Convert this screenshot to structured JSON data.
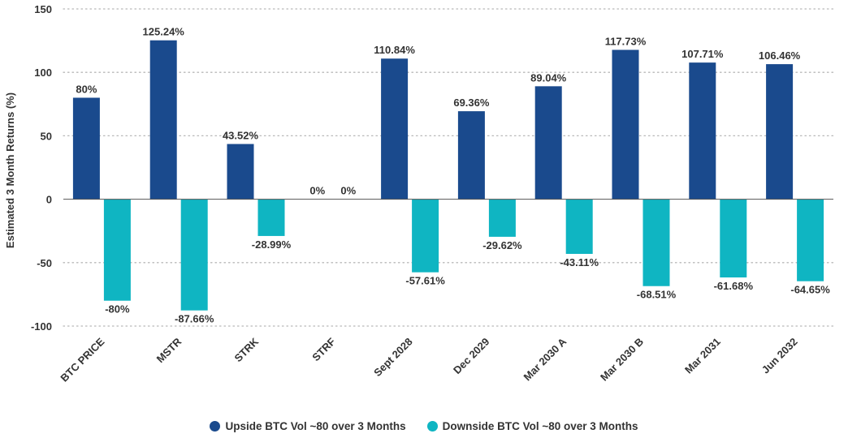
{
  "chart_data": {
    "type": "bar",
    "title": "",
    "xlabel": "",
    "ylabel": "Estimated 3 Month Returns (%)",
    "ylim": [
      -100,
      150
    ],
    "yticks": [
      150,
      100,
      50,
      0,
      -50,
      -100
    ],
    "grid": true,
    "legend_position": "bottom",
    "categories": [
      "BTC PRICE",
      "MSTR",
      "STRK",
      "STRF",
      "Sept 2028",
      "Dec 2029",
      "Mar 2030 A",
      "Mar 2030 B",
      "Mar 2031",
      "Jun 2032"
    ],
    "series": [
      {
        "name": "Upside BTC Vol ~80 over 3 Months",
        "color": "#1a4a8d",
        "values": [
          80,
          125.24,
          43.52,
          0,
          110.84,
          69.36,
          89.04,
          117.73,
          107.71,
          106.46
        ],
        "labels": [
          "80%",
          "125.24%",
          "43.52%",
          "0%",
          "110.84%",
          "69.36%",
          "89.04%",
          "117.73%",
          "107.71%",
          "106.46%"
        ]
      },
      {
        "name": "Downside BTC Vol ~80 over 3 Months",
        "color": "#0fb5c2",
        "values": [
          -80,
          -87.66,
          -28.99,
          0,
          -57.61,
          -29.62,
          -43.11,
          -68.51,
          -61.68,
          -64.65
        ],
        "labels": [
          "-80%",
          "-87.66%",
          "-28.99%",
          "0%",
          "-57.61%",
          "-29.62%",
          "-43.11%",
          "-68.51%",
          "-61.68%",
          "-64.65%"
        ]
      }
    ]
  }
}
